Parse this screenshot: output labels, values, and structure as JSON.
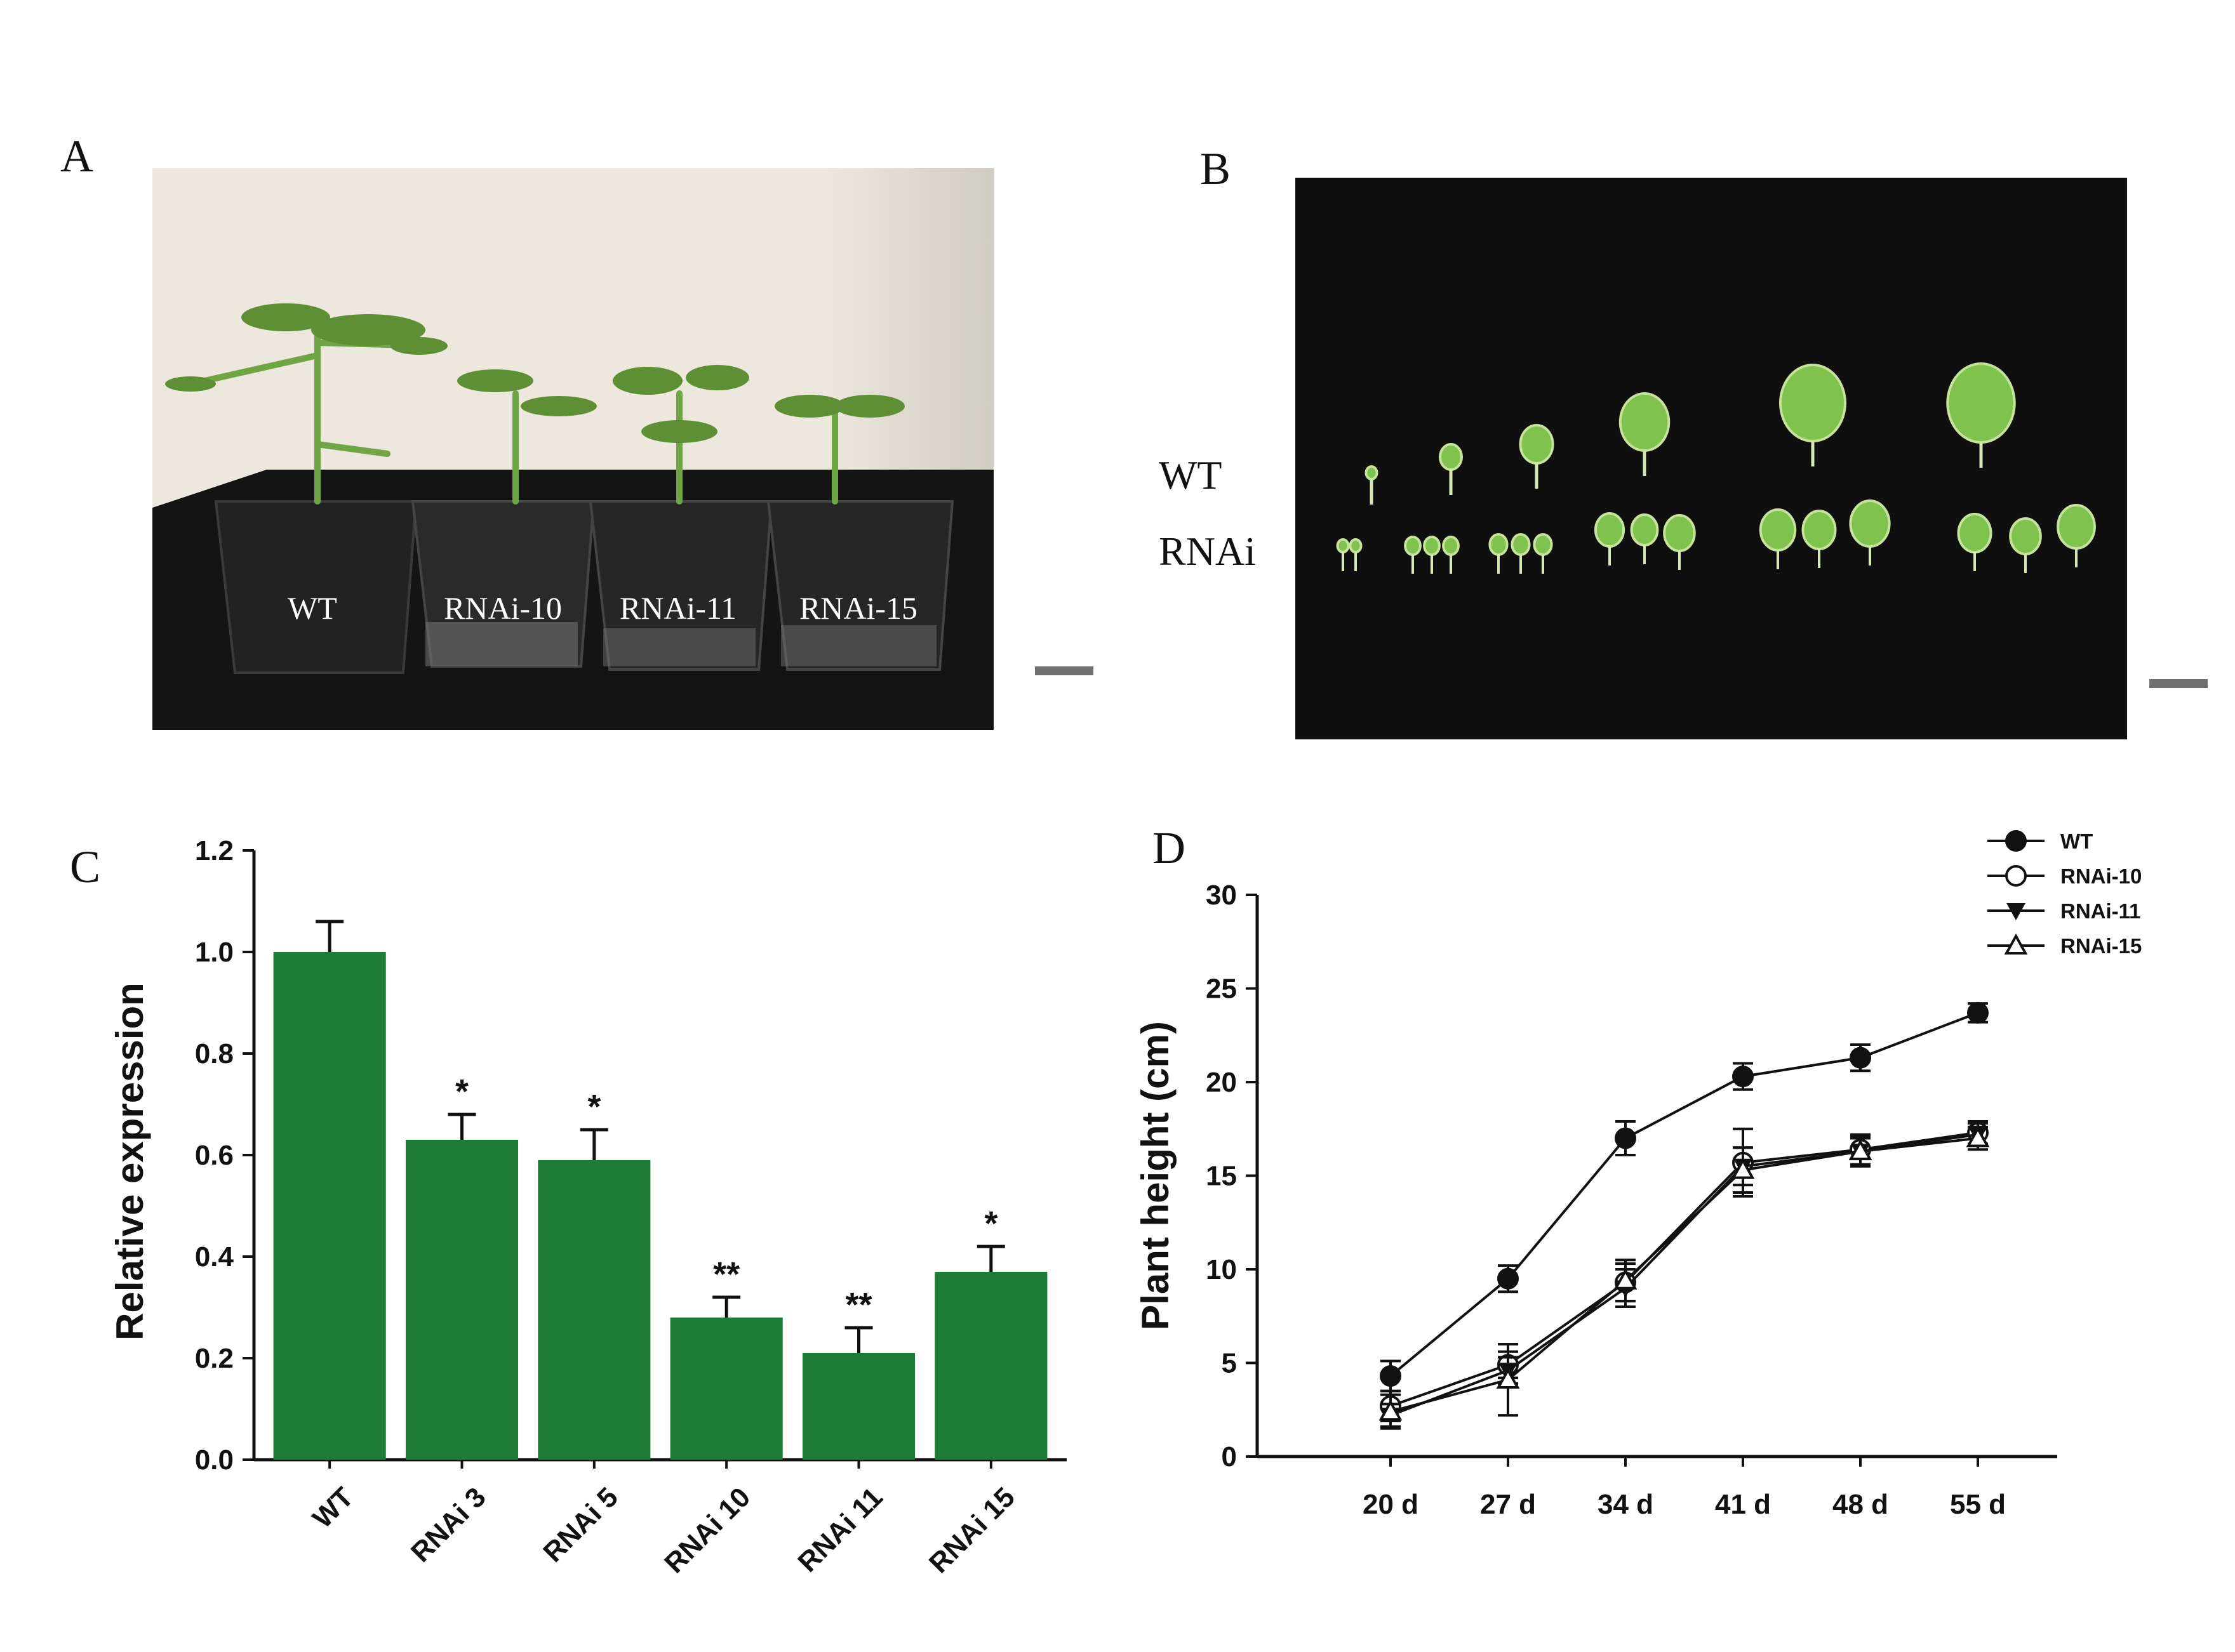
{
  "panels": {
    "A": {
      "letter": "A",
      "pot_labels": [
        "WT",
        "RNAi-10",
        "RNAi-11",
        "RNAi-15"
      ]
    },
    "B": {
      "letter": "B",
      "row_labels": [
        "WT",
        "RNAi"
      ]
    },
    "C": {
      "letter": "C"
    },
    "D": {
      "letter": "D"
    }
  },
  "colors": {
    "bar_fill": "#1d7d36",
    "photo_a_wall": "#ece8dd",
    "photo_a_ground": "#141414",
    "photo_b_bg": "#0f0f0f",
    "leaf": "#7fc24e",
    "scale_bar": "#6f6f6f"
  },
  "chart_data": [
    {
      "type": "bar",
      "panel": "C",
      "categories": [
        "WT",
        "RNAi 3",
        "RNAi 5",
        "RNAi 10",
        "RNAi 11",
        "RNAi 15"
      ],
      "values": [
        1.0,
        0.63,
        0.59,
        0.28,
        0.21,
        0.37
      ],
      "errors": [
        0.06,
        0.05,
        0.06,
        0.04,
        0.05,
        0.05
      ],
      "significance": [
        "",
        "*",
        "*",
        "**",
        "**",
        "*"
      ],
      "ylabel": "Relative expression",
      "ylim": [
        0,
        1.2
      ],
      "yticks": [
        "0.0",
        "0.2",
        "0.4",
        "0.6",
        "0.8",
        "1.0",
        "1.2"
      ],
      "grid": false
    },
    {
      "type": "line",
      "panel": "D",
      "x": [
        "20 d",
        "27 d",
        "34 d",
        "41 d",
        "48 d",
        "55 d"
      ],
      "ylabel": "Plant height (cm)",
      "ylim": [
        0,
        30
      ],
      "yticks": [
        "0",
        "5",
        "10",
        "15",
        "20",
        "25",
        "30"
      ],
      "legend_position": "top-right",
      "grid": false,
      "series": [
        {
          "name": "WT",
          "marker": "filled-circle",
          "values": [
            4.3,
            9.5,
            17.0,
            20.3,
            21.3,
            23.7
          ],
          "errors": [
            0.8,
            0.7,
            0.9,
            0.7,
            0.7,
            0.5
          ]
        },
        {
          "name": "RNAi-10",
          "marker": "open-circle",
          "values": [
            2.7,
            4.9,
            9.3,
            15.7,
            16.4,
            17.3
          ],
          "errors": [
            0.8,
            0.7,
            1.0,
            1.8,
            0.8,
            0.6
          ]
        },
        {
          "name": "RNAi-11",
          "marker": "filled-triangle-down",
          "values": [
            2.2,
            4.6,
            9.0,
            15.5,
            16.3,
            17.2
          ],
          "errors": [
            0.6,
            0.7,
            1.0,
            1.0,
            0.7,
            0.6
          ]
        },
        {
          "name": "RNAi-15",
          "marker": "open-triangle-up",
          "values": [
            2.4,
            4.1,
            9.4,
            15.3,
            16.3,
            17.0
          ],
          "errors": [
            0.9,
            1.9,
            1.1,
            1.2,
            0.8,
            0.6
          ]
        }
      ]
    }
  ]
}
